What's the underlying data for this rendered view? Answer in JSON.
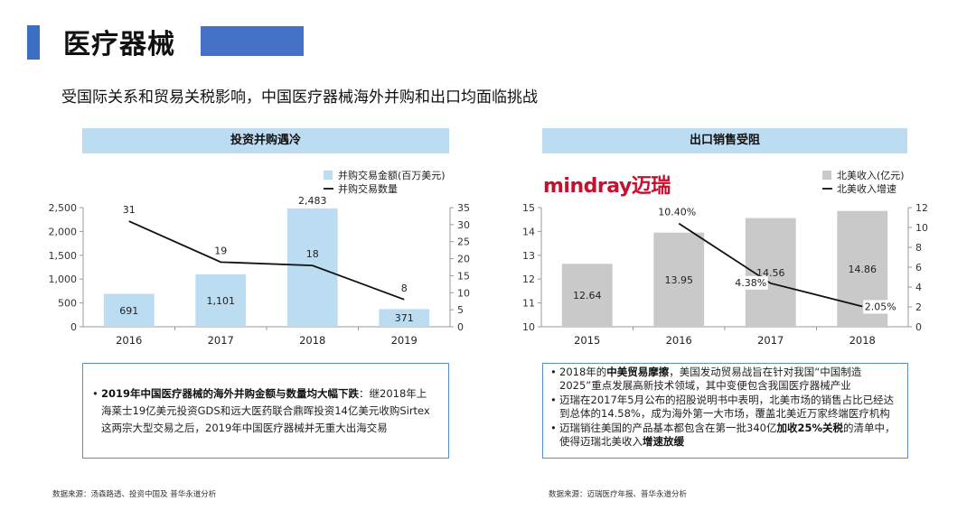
{
  "header": {
    "title": "医疗器械",
    "subtitle": "受国际关系和贸易关税影响，中国医疗器械海外并购和出口均面临挑战"
  },
  "left_panel": {
    "heading": "投资并购遇冷",
    "note_bold": "2019年中国医疗器械的海外并购金额与数量均大幅下跌",
    "note_text": "：继2018年上海莱士19亿美元投资GDS和远大医药联合鼎晖投资14亿美元收购Sirtex这两宗大型交易之后，2019年中国医疗器械并无重大出海交易",
    "source": "数据来源：汤森路透、投资中国及 普华永道分析"
  },
  "right_panel": {
    "heading": "出口销售受阻",
    "logo_text": "mindray迈瑞",
    "notes": [
      {
        "a": "2018年的",
        "b": "中美贸易摩擦",
        "c": "，美国发动贸易战旨在针对我国“中国制造2025”重点发展高新技术领域，其中变便包含我国医疗器械产业",
        "d": "",
        "e": ""
      },
      {
        "a": "迈瑞在2017年5月公布的招股说明书中表明，北美市场的销售占比已经达到总体的14.58%，成为海外第一大市场，覆盖北美近万家终端医疗机构",
        "b": "",
        "c": "",
        "d": "",
        "e": ""
      },
      {
        "a": "迈瑞销往美国的产品基本都包含在第一批340亿",
        "b": "加收25%关税",
        "c": "的清单中，使得迈瑞北美收入",
        "d": "增速放缓",
        "e": ""
      }
    ],
    "source": "数据来源：迈瑞医疗年报、普华永道分析"
  },
  "colors": {
    "left_bar": "#bcdcf2",
    "right_bar": "#c9c9c9",
    "line": "#111111",
    "accent": "#4472c4"
  },
  "chart_data": [
    {
      "type": "bar",
      "categories": [
        "2016",
        "2017",
        "2018",
        "2019"
      ],
      "series": [
        {
          "name": "并购交易金额(百万美元)",
          "kind": "bar",
          "axis": "left",
          "values": [
            691,
            1101,
            2483,
            371
          ],
          "labels": [
            "691",
            "1,101",
            "2,483",
            "371"
          ]
        },
        {
          "name": "并购交易数量",
          "kind": "line",
          "axis": "right",
          "values": [
            31,
            19,
            18,
            8
          ],
          "labels": [
            "31",
            "19",
            "18",
            "8"
          ]
        }
      ],
      "left_axis": {
        "min": 0,
        "max": 2500,
        "ticks": [
          0,
          500,
          1000,
          1500,
          2000,
          2500
        ],
        "tick_labels": [
          "0",
          "500",
          "1,000",
          "1,500",
          "2,000",
          "2,500"
        ]
      },
      "right_axis": {
        "min": 0,
        "max": 35,
        "ticks": [
          0,
          5,
          10,
          15,
          20,
          25,
          30,
          35
        ],
        "tick_labels": [
          "0",
          "5",
          "10",
          "15",
          "20",
          "25",
          "30",
          "35"
        ]
      },
      "legend": [
        "并购交易金额(百万美元)",
        "并购交易数量"
      ],
      "legend_position": "top-right"
    },
    {
      "type": "bar",
      "categories": [
        "2015",
        "2016",
        "2017",
        "2018"
      ],
      "series": [
        {
          "name": "北美收入(亿元)",
          "kind": "bar",
          "axis": "left",
          "values": [
            12.64,
            13.95,
            14.56,
            14.86
          ],
          "labels": [
            "12.64",
            "13.95",
            "14.56",
            "14.86"
          ]
        },
        {
          "name": "北美收入增速",
          "kind": "line",
          "axis": "right",
          "values": [
            null,
            10.4,
            4.38,
            2.05
          ],
          "labels": [
            "",
            "10.40%",
            "4.38%",
            "2.05%"
          ]
        }
      ],
      "left_axis": {
        "min": 10,
        "max": 15,
        "ticks": [
          10,
          11,
          12,
          13,
          14,
          15
        ],
        "tick_labels": [
          "10",
          "11",
          "12",
          "13",
          "14",
          "15"
        ]
      },
      "right_axis": {
        "min": 0,
        "max": 12,
        "ticks": [
          0,
          2,
          4,
          6,
          8,
          10,
          12
        ],
        "tick_labels": [
          "0",
          "2",
          "4",
          "6",
          "8",
          "10",
          "12"
        ]
      },
      "legend": [
        "北美收入(亿元)",
        "北美收入增速"
      ],
      "legend_position": "top-right"
    }
  ]
}
